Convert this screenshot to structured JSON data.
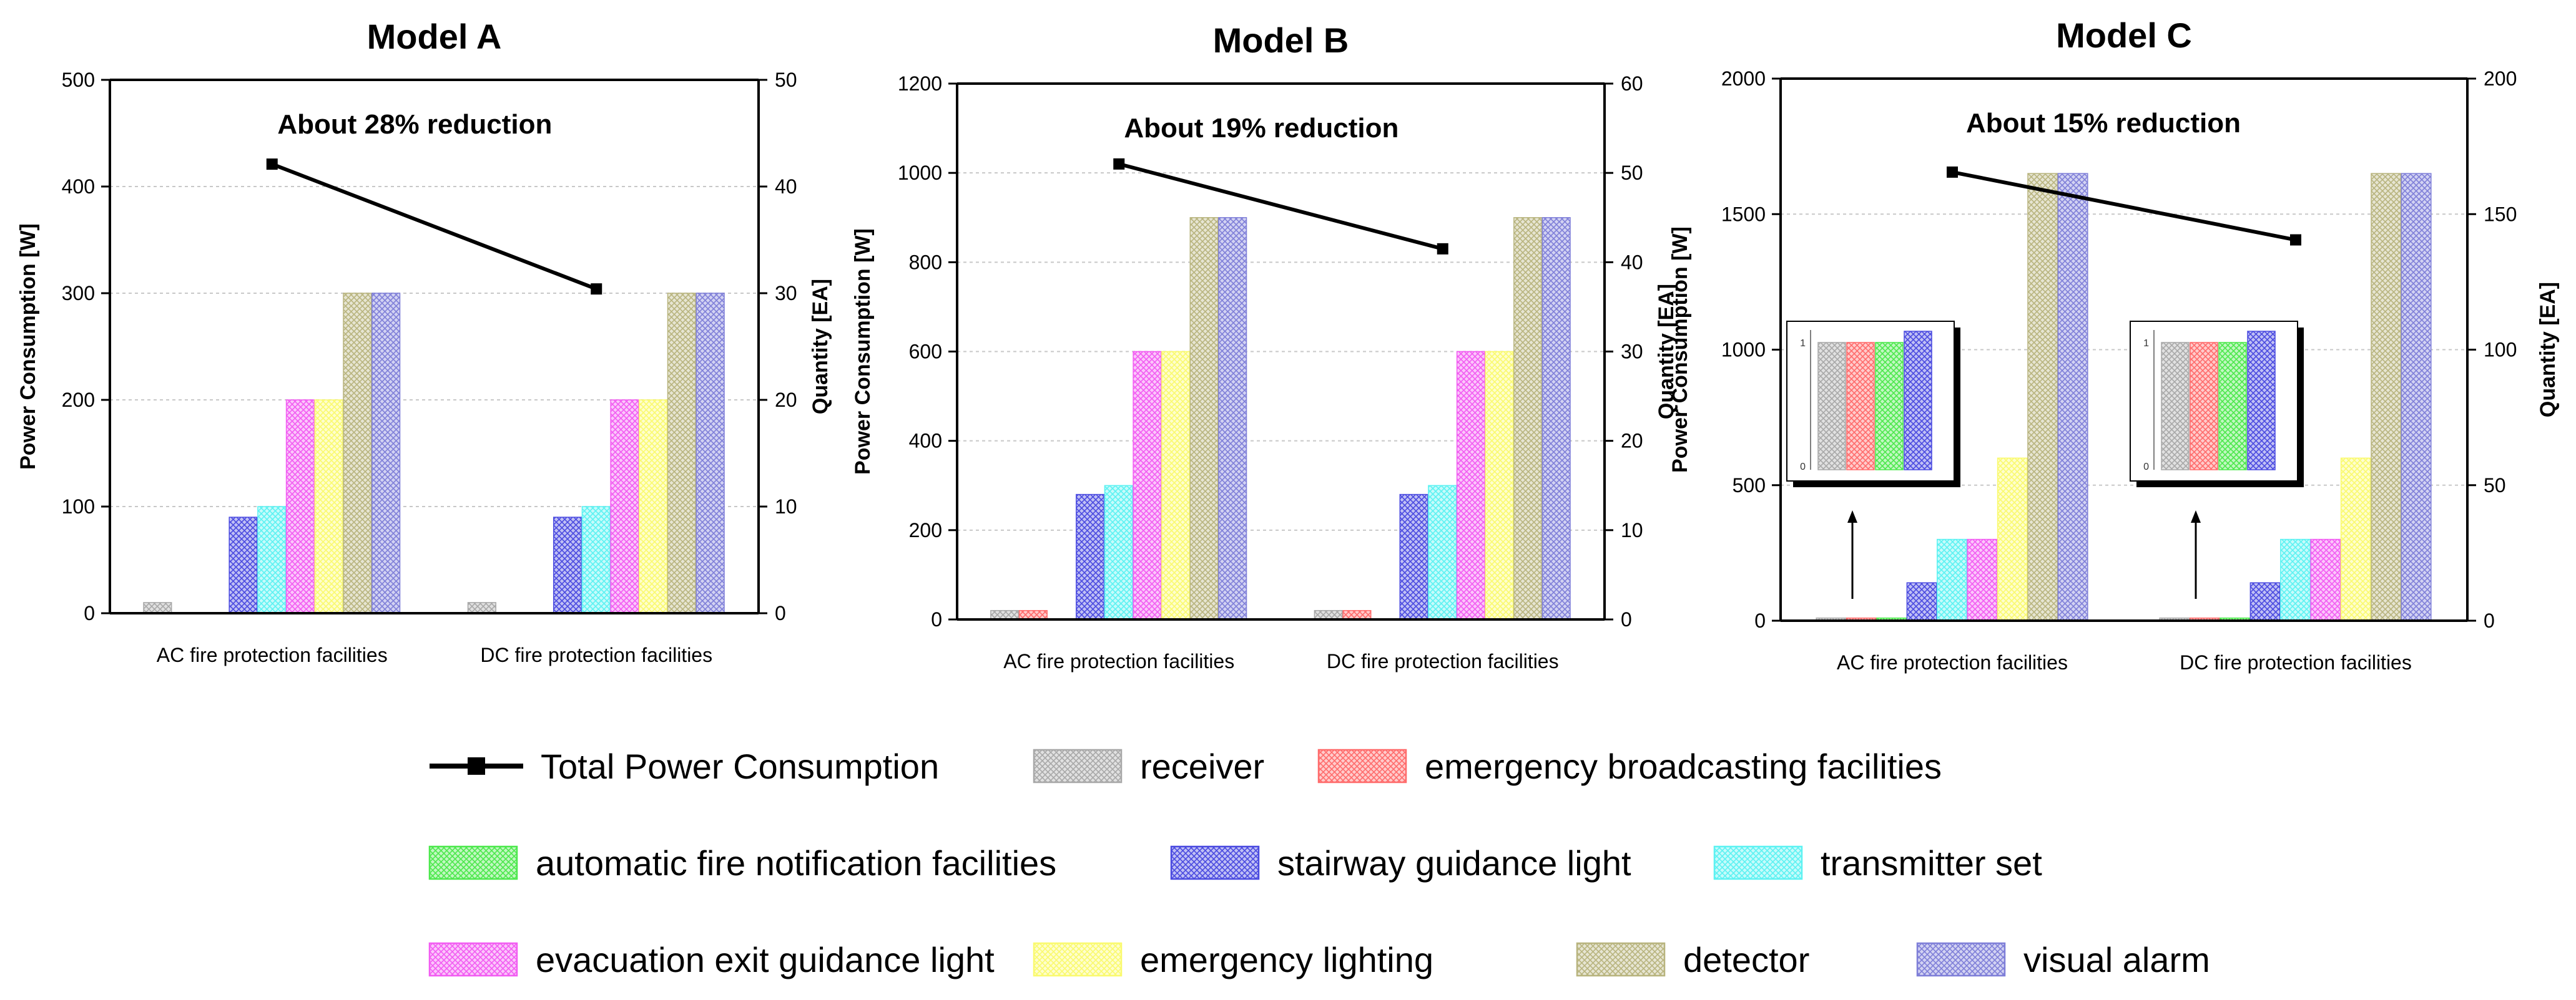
{
  "chart_data": [
    {
      "type": "bar",
      "title": "Model A",
      "categories": [
        "AC fire protection facilities",
        "DC fire protection facilities"
      ],
      "ylabel": "Power Consumption [W]",
      "y2label": "Quantity [EA]",
      "ylim": [
        0,
        500
      ],
      "yticks": [
        0,
        100,
        200,
        300,
        400,
        500
      ],
      "y2lim": [
        0,
        50
      ],
      "y2ticks": [
        0,
        10,
        20,
        30,
        40,
        50
      ],
      "grid": true,
      "annotation": "About 28% reduction",
      "bar_series": [
        {
          "name": "receiver",
          "values": [
            1,
            1
          ]
        },
        {
          "name": "emergency broadcasting facilities",
          "values": [
            0,
            0
          ]
        },
        {
          "name": "automatic fire notification facilities",
          "values": [
            0,
            0
          ]
        },
        {
          "name": "stairway guidance light",
          "values": [
            9,
            9
          ]
        },
        {
          "name": "transmitter set",
          "values": [
            10,
            10
          ]
        },
        {
          "name": "evacuation exit guidance light",
          "values": [
            20,
            20
          ]
        },
        {
          "name": "emergency lighting",
          "values": [
            20,
            20
          ]
        },
        {
          "name": "detector",
          "values": [
            30,
            30
          ]
        },
        {
          "name": "visual alarm",
          "values": [
            30,
            30
          ]
        }
      ],
      "line_series": {
        "name": "Total Power Consumption",
        "axis": "left",
        "values": [
          421,
          304
        ]
      }
    },
    {
      "type": "bar",
      "title": "Model B",
      "categories": [
        "AC fire protection facilities",
        "DC fire protection facilities"
      ],
      "ylabel": "Power Consumption [W]",
      "y2label": "Quantity [EA]",
      "ylim": [
        0,
        1200
      ],
      "yticks": [
        0,
        200,
        400,
        600,
        800,
        1000,
        1200
      ],
      "y2lim": [
        0,
        60
      ],
      "y2ticks": [
        0,
        10,
        20,
        30,
        40,
        50,
        60
      ],
      "grid": true,
      "annotation": "About 19% reduction",
      "bar_series": [
        {
          "name": "receiver",
          "values": [
            1,
            1
          ]
        },
        {
          "name": "emergency broadcasting facilities",
          "values": [
            1,
            1
          ]
        },
        {
          "name": "automatic fire notification facilities",
          "values": [
            0,
            0
          ]
        },
        {
          "name": "stairway guidance light",
          "values": [
            14,
            14
          ]
        },
        {
          "name": "transmitter set",
          "values": [
            15,
            15
          ]
        },
        {
          "name": "evacuation exit guidance light",
          "values": [
            30,
            30
          ]
        },
        {
          "name": "emergency lighting",
          "values": [
            30,
            30
          ]
        },
        {
          "name": "detector",
          "values": [
            45,
            45
          ]
        },
        {
          "name": "visual alarm",
          "values": [
            45,
            45
          ]
        }
      ],
      "line_series": {
        "name": "Total Power Consumption",
        "axis": "left",
        "values": [
          1020,
          830
        ]
      }
    },
    {
      "type": "bar",
      "title": "Model C",
      "categories": [
        "AC fire protection facilities",
        "DC fire protection facilities"
      ],
      "ylabel": "Power Consumption [W]",
      "y2label": "Quantity [EA]",
      "ylim": [
        0,
        2000
      ],
      "yticks": [
        0,
        500,
        1000,
        1500,
        2000
      ],
      "y2lim": [
        0,
        200
      ],
      "y2ticks": [
        0,
        50,
        100,
        150,
        200
      ],
      "grid": true,
      "annotation": "About 15% reduction",
      "bar_series": [
        {
          "name": "receiver",
          "values": [
            1,
            1
          ]
        },
        {
          "name": "emergency broadcasting facilities",
          "values": [
            1,
            1
          ]
        },
        {
          "name": "automatic fire notification facilities",
          "values": [
            1,
            1
          ]
        },
        {
          "name": "stairway guidance light",
          "values": [
            14,
            14
          ]
        },
        {
          "name": "transmitter set",
          "values": [
            30,
            30
          ]
        },
        {
          "name": "evacuation exit guidance light",
          "values": [
            30,
            30
          ]
        },
        {
          "name": "emergency lighting",
          "values": [
            60,
            60
          ]
        },
        {
          "name": "detector",
          "values": [
            165,
            165
          ]
        },
        {
          "name": "visual alarm",
          "values": [
            165,
            165
          ]
        }
      ],
      "line_series": {
        "name": "Total Power Consumption",
        "axis": "left",
        "values": [
          1655,
          1405
        ]
      },
      "inset": {
        "ticks": [
          "0",
          "1"
        ]
      }
    }
  ],
  "legend": [
    {
      "name": "Total Power Consumption",
      "kind": "line",
      "color": "#000000"
    },
    {
      "name": "receiver",
      "kind": "bar",
      "color": "#a8a8a8"
    },
    {
      "name": "emergency broadcasting facilities",
      "kind": "bar",
      "color": "#ff6b6b"
    },
    {
      "name": "automatic fire notification facilities",
      "kind": "bar",
      "color": "#4ce84c"
    },
    {
      "name": "stairway guidance light",
      "kind": "bar",
      "color": "#4a4ae0"
    },
    {
      "name": "transmitter set",
      "kind": "bar",
      "color": "#5cf2f2"
    },
    {
      "name": "evacuation exit guidance light",
      "kind": "bar",
      "color": "#f25cf2"
    },
    {
      "name": "emergency lighting",
      "kind": "bar",
      "color": "#fafa6e"
    },
    {
      "name": "detector",
      "kind": "bar",
      "color": "#b8b47e"
    },
    {
      "name": "visual alarm",
      "kind": "bar",
      "color": "#7f7fd8"
    }
  ]
}
